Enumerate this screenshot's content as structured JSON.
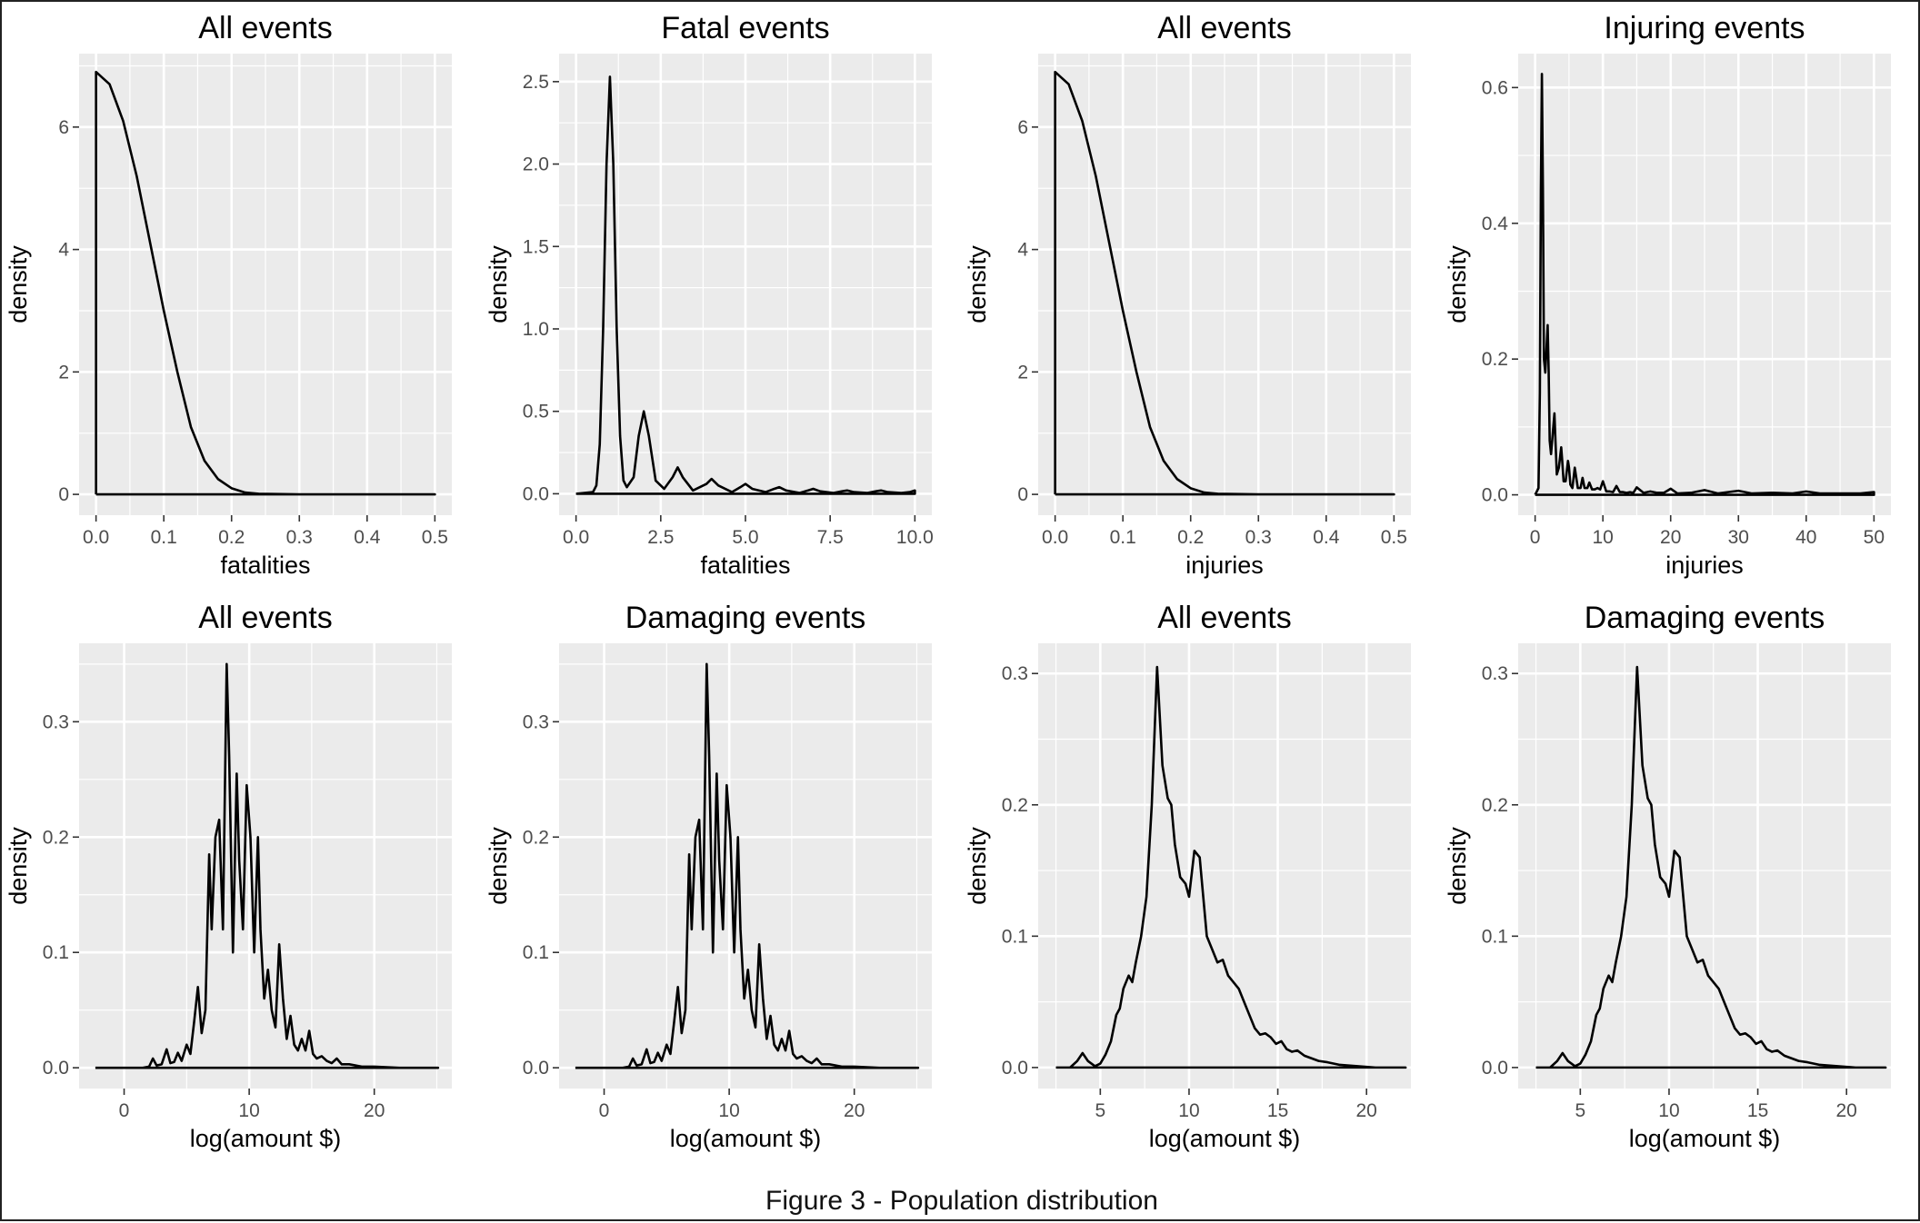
{
  "caption": "Figure 3 - Population distribution",
  "chart_data": [
    {
      "type": "line",
      "title": "All events",
      "xlabel": "fatalities",
      "ylabel": "density",
      "xlim": [
        -0.025,
        0.525
      ],
      "ylim": [
        -0.34,
        7.2
      ],
      "x_ticks": [
        0,
        0.1,
        0.2,
        0.3,
        0.4,
        0.5
      ],
      "x_tick_labels": [
        "0.0",
        "0.1",
        "0.2",
        "0.3",
        "0.4",
        "0.5"
      ],
      "y_ticks": [
        0,
        2,
        4,
        6
      ],
      "y_tick_labels": [
        "0",
        "2",
        "4",
        "6"
      ],
      "series": [
        {
          "x": [
            0,
            0,
            0.02,
            0.04,
            0.06,
            0.08,
            0.1,
            0.12,
            0.14,
            0.16,
            0.18,
            0.2,
            0.22,
            0.24,
            0.3,
            0.4,
            0.5,
            0
          ],
          "y": [
            0,
            6.9,
            6.7,
            6.1,
            5.2,
            4.1,
            3.0,
            2.0,
            1.1,
            0.55,
            0.25,
            0.1,
            0.03,
            0.01,
            0,
            0,
            0,
            0
          ]
        }
      ]
    },
    {
      "type": "line",
      "title": "Fatal events",
      "xlabel": "fatalities",
      "ylabel": "density",
      "xlim": [
        -0.5,
        10.5
      ],
      "ylim": [
        -0.13,
        2.67
      ],
      "x_ticks": [
        0,
        2.5,
        5,
        7.5,
        10
      ],
      "x_tick_labels": [
        "0.0",
        "2.5",
        "5.0",
        "7.5",
        "10.0"
      ],
      "y_ticks": [
        0,
        0.5,
        1,
        1.5,
        2,
        2.5
      ],
      "y_tick_labels": [
        "0.0",
        "0.5",
        "1.0",
        "1.5",
        "2.0",
        "2.5"
      ],
      "series": [
        {
          "x": [
            0,
            0.5,
            0.6,
            0.7,
            0.8,
            0.9,
            1.0,
            1.1,
            1.2,
            1.3,
            1.4,
            1.5,
            1.7,
            1.85,
            2.0,
            2.15,
            2.35,
            2.6,
            2.85,
            3.0,
            3.15,
            3.45,
            3.85,
            4.0,
            4.2,
            4.6,
            4.85,
            5.0,
            5.2,
            5.6,
            5.85,
            6.0,
            6.2,
            6.6,
            6.85,
            7.0,
            7.2,
            7.6,
            7.85,
            8.0,
            8.2,
            8.6,
            8.85,
            9.0,
            9.2,
            9.6,
            9.85,
            10.0,
            10.0,
            0
          ],
          "y": [
            0,
            0.01,
            0.05,
            0.3,
            1.0,
            2.0,
            2.53,
            2.0,
            1.0,
            0.35,
            0.08,
            0.04,
            0.1,
            0.35,
            0.5,
            0.35,
            0.08,
            0.03,
            0.1,
            0.16,
            0.1,
            0.02,
            0.06,
            0.09,
            0.05,
            0.01,
            0.04,
            0.06,
            0.03,
            0.01,
            0.03,
            0.04,
            0.02,
            0.005,
            0.02,
            0.03,
            0.015,
            0.005,
            0.015,
            0.02,
            0.01,
            0.005,
            0.015,
            0.02,
            0.01,
            0.005,
            0.01,
            0.02,
            0,
            0
          ]
        }
      ]
    },
    {
      "type": "line",
      "title": "All events",
      "xlabel": "injuries",
      "ylabel": "density",
      "xlim": [
        -0.025,
        0.525
      ],
      "ylim": [
        -0.34,
        7.2
      ],
      "x_ticks": [
        0,
        0.1,
        0.2,
        0.3,
        0.4,
        0.5
      ],
      "x_tick_labels": [
        "0.0",
        "0.1",
        "0.2",
        "0.3",
        "0.4",
        "0.5"
      ],
      "y_ticks": [
        0,
        2,
        4,
        6
      ],
      "y_tick_labels": [
        "0",
        "2",
        "4",
        "6"
      ],
      "series": [
        {
          "x": [
            0,
            0,
            0.02,
            0.04,
            0.06,
            0.08,
            0.1,
            0.12,
            0.14,
            0.16,
            0.18,
            0.2,
            0.22,
            0.24,
            0.3,
            0.4,
            0.5,
            0
          ],
          "y": [
            0,
            6.9,
            6.7,
            6.1,
            5.2,
            4.1,
            3.0,
            2.0,
            1.1,
            0.55,
            0.25,
            0.1,
            0.03,
            0.01,
            0,
            0,
            0,
            0
          ]
        }
      ]
    },
    {
      "type": "line",
      "title": "Injuring events",
      "xlabel": "injuries",
      "ylabel": "density",
      "xlim": [
        -2.5,
        52.5
      ],
      "ylim": [
        -0.03,
        0.65
      ],
      "x_ticks": [
        0,
        10,
        20,
        30,
        40,
        50
      ],
      "x_tick_labels": [
        "0",
        "10",
        "20",
        "30",
        "40",
        "50"
      ],
      "y_ticks": [
        0,
        0.2,
        0.4,
        0.6
      ],
      "y_tick_labels": [
        "0.0",
        "0.2",
        "0.4",
        "0.6"
      ],
      "series": [
        {
          "x": [
            0,
            0.5,
            0.7,
            0.85,
            1.0,
            1.15,
            1.3,
            1.5,
            1.7,
            1.85,
            2.0,
            2.15,
            2.35,
            2.6,
            2.85,
            3.0,
            3.2,
            3.5,
            3.85,
            4.0,
            4.2,
            4.5,
            4.85,
            5.0,
            5.2,
            5.5,
            5.85,
            6.0,
            6.3,
            6.7,
            7.0,
            7.3,
            7.7,
            8.0,
            8.4,
            8.8,
            9.2,
            9.6,
            10.0,
            10.5,
            11.0,
            11.5,
            12.0,
            12.5,
            13.0,
            13.5,
            14.0,
            14.5,
            15.0,
            16.0,
            17.0,
            18.0,
            19.0,
            20.0,
            21.0,
            23.0,
            25.0,
            27.0,
            30.0,
            32.0,
            35.0,
            38.0,
            40.0,
            42.0,
            45.0,
            48.0,
            50.0,
            50.0,
            0
          ],
          "y": [
            0,
            0.01,
            0.15,
            0.45,
            0.62,
            0.45,
            0.2,
            0.18,
            0.22,
            0.25,
            0.18,
            0.08,
            0.06,
            0.09,
            0.12,
            0.08,
            0.03,
            0.04,
            0.07,
            0.05,
            0.02,
            0.02,
            0.05,
            0.04,
            0.015,
            0.01,
            0.04,
            0.03,
            0.01,
            0.01,
            0.025,
            0.01,
            0.01,
            0.018,
            0.008,
            0.008,
            0.01,
            0.008,
            0.02,
            0.005,
            0.005,
            0.004,
            0.013,
            0.004,
            0.004,
            0.003,
            0.004,
            0.003,
            0.011,
            0.003,
            0.005,
            0.003,
            0.003,
            0.009,
            0.002,
            0.003,
            0.007,
            0.002,
            0.006,
            0.002,
            0.003,
            0.002,
            0.005,
            0.002,
            0.002,
            0.002,
            0.004,
            0,
            0
          ]
        }
      ]
    },
    {
      "type": "line",
      "title": "All events",
      "xlabel": "log(amount $)",
      "ylabel": "density",
      "xlim": [
        -3.6,
        26.2
      ],
      "ylim": [
        -0.018,
        0.368
      ],
      "x_ticks": [
        0,
        10,
        20
      ],
      "x_tick_labels": [
        "0",
        "10",
        "20"
      ],
      "y_ticks": [
        0,
        0.1,
        0.2,
        0.3
      ],
      "y_tick_labels": [
        "0.0",
        "0.1",
        "0.2",
        "0.3"
      ],
      "series": [
        {
          "x": [
            -2.3,
            1.5,
            2.0,
            2.3,
            2.6,
            3.0,
            3.4,
            3.7,
            4.0,
            4.3,
            4.6,
            5.0,
            5.3,
            5.6,
            5.9,
            6.2,
            6.5,
            6.8,
            7.0,
            7.3,
            7.6,
            7.9,
            8.2,
            8.4,
            8.7,
            9.0,
            9.2,
            9.5,
            9.8,
            10.1,
            10.4,
            10.7,
            10.9,
            11.2,
            11.5,
            11.8,
            12.1,
            12.4,
            12.7,
            13.0,
            13.3,
            13.6,
            13.9,
            14.2,
            14.5,
            14.8,
            15.1,
            15.4,
            15.8,
            16.2,
            16.6,
            17.0,
            17.4,
            18.0,
            19.0,
            20.0,
            22.0,
            25.1,
            25.1,
            -2.3
          ],
          "y": [
            0,
            0,
            0.001,
            0.008,
            0.002,
            0.003,
            0.016,
            0.004,
            0.005,
            0.013,
            0.006,
            0.02,
            0.012,
            0.04,
            0.07,
            0.03,
            0.05,
            0.185,
            0.12,
            0.2,
            0.215,
            0.12,
            0.35,
            0.27,
            0.1,
            0.255,
            0.18,
            0.12,
            0.245,
            0.2,
            0.1,
            0.2,
            0.12,
            0.06,
            0.085,
            0.05,
            0.035,
            0.107,
            0.06,
            0.025,
            0.045,
            0.02,
            0.015,
            0.025,
            0.015,
            0.032,
            0.012,
            0.008,
            0.01,
            0.006,
            0.004,
            0.008,
            0.003,
            0.003,
            0.001,
            0.001,
            0,
            0,
            0,
            0
          ]
        }
      ]
    },
    {
      "type": "line",
      "title": "Damaging events",
      "xlabel": "log(amount $)",
      "ylabel": "density",
      "xlim": [
        -3.6,
        26.2
      ],
      "ylim": [
        -0.018,
        0.368
      ],
      "x_ticks": [
        0,
        10,
        20
      ],
      "x_tick_labels": [
        "0",
        "10",
        "20"
      ],
      "y_ticks": [
        0,
        0.1,
        0.2,
        0.3
      ],
      "y_tick_labels": [
        "0.0",
        "0.1",
        "0.2",
        "0.3"
      ],
      "series": [
        {
          "x": [
            -2.3,
            1.5,
            2.0,
            2.3,
            2.6,
            3.0,
            3.4,
            3.7,
            4.0,
            4.3,
            4.6,
            5.0,
            5.3,
            5.6,
            5.9,
            6.2,
            6.5,
            6.8,
            7.0,
            7.3,
            7.6,
            7.9,
            8.2,
            8.4,
            8.7,
            9.0,
            9.2,
            9.5,
            9.8,
            10.1,
            10.4,
            10.7,
            10.9,
            11.2,
            11.5,
            11.8,
            12.1,
            12.4,
            12.7,
            13.0,
            13.3,
            13.6,
            13.9,
            14.2,
            14.5,
            14.8,
            15.1,
            15.4,
            15.8,
            16.2,
            16.6,
            17.0,
            17.4,
            18.0,
            19.0,
            20.0,
            22.0,
            25.1,
            25.1,
            -2.3
          ],
          "y": [
            0,
            0,
            0.001,
            0.008,
            0.002,
            0.003,
            0.016,
            0.004,
            0.005,
            0.013,
            0.006,
            0.02,
            0.012,
            0.04,
            0.07,
            0.03,
            0.05,
            0.185,
            0.12,
            0.2,
            0.215,
            0.12,
            0.35,
            0.27,
            0.1,
            0.255,
            0.18,
            0.12,
            0.245,
            0.2,
            0.1,
            0.2,
            0.12,
            0.06,
            0.085,
            0.05,
            0.035,
            0.107,
            0.06,
            0.025,
            0.045,
            0.02,
            0.015,
            0.025,
            0.015,
            0.032,
            0.012,
            0.008,
            0.01,
            0.006,
            0.004,
            0.008,
            0.003,
            0.003,
            0.001,
            0.001,
            0,
            0,
            0,
            0
          ]
        }
      ]
    },
    {
      "type": "line",
      "title": "All events",
      "xlabel": "log(amount $)",
      "ylabel": "density",
      "xlim": [
        1.5,
        22.5
      ],
      "ylim": [
        -0.016,
        0.323
      ],
      "x_ticks": [
        5,
        10,
        15,
        20
      ],
      "x_tick_labels": [
        "5",
        "10",
        "15",
        "20"
      ],
      "y_ticks": [
        0,
        0.1,
        0.2,
        0.3
      ],
      "y_tick_labels": [
        "0.0",
        "0.1",
        "0.2",
        "0.3"
      ],
      "series": [
        {
          "x": [
            2.5,
            3.3,
            3.7,
            4.0,
            4.3,
            4.7,
            5.0,
            5.3,
            5.6,
            5.9,
            6.1,
            6.3,
            6.6,
            6.8,
            7.0,
            7.3,
            7.6,
            7.9,
            8.2,
            8.5,
            8.8,
            9.0,
            9.2,
            9.5,
            9.8,
            10.0,
            10.3,
            10.6,
            10.8,
            11.0,
            11.3,
            11.6,
            11.9,
            12.2,
            12.5,
            12.8,
            13.1,
            13.4,
            13.7,
            14.0,
            14.3,
            14.6,
            14.9,
            15.2,
            15.5,
            15.8,
            16.1,
            16.5,
            16.9,
            17.3,
            17.8,
            18.5,
            19.5,
            20.5,
            22.2,
            22.2,
            2.5
          ],
          "y": [
            0,
            0,
            0.005,
            0.011,
            0.005,
            0.001,
            0.003,
            0.01,
            0.02,
            0.04,
            0.045,
            0.06,
            0.07,
            0.065,
            0.08,
            0.1,
            0.13,
            0.2,
            0.305,
            0.23,
            0.205,
            0.2,
            0.17,
            0.145,
            0.14,
            0.13,
            0.165,
            0.16,
            0.13,
            0.1,
            0.09,
            0.08,
            0.082,
            0.07,
            0.065,
            0.06,
            0.05,
            0.04,
            0.03,
            0.025,
            0.026,
            0.023,
            0.018,
            0.02,
            0.014,
            0.012,
            0.013,
            0.009,
            0.007,
            0.005,
            0.004,
            0.002,
            0.001,
            0,
            0,
            0,
            0
          ]
        }
      ]
    },
    {
      "type": "line",
      "title": "Damaging events",
      "xlabel": "log(amount $)",
      "ylabel": "density",
      "xlim": [
        1.5,
        22.5
      ],
      "ylim": [
        -0.016,
        0.323
      ],
      "x_ticks": [
        5,
        10,
        15,
        20
      ],
      "x_tick_labels": [
        "5",
        "10",
        "15",
        "20"
      ],
      "y_ticks": [
        0,
        0.1,
        0.2,
        0.3
      ],
      "y_tick_labels": [
        "0.0",
        "0.1",
        "0.2",
        "0.3"
      ],
      "series": [
        {
          "x": [
            2.5,
            3.3,
            3.7,
            4.0,
            4.3,
            4.7,
            5.0,
            5.3,
            5.6,
            5.9,
            6.1,
            6.3,
            6.6,
            6.8,
            7.0,
            7.3,
            7.6,
            7.9,
            8.2,
            8.5,
            8.8,
            9.0,
            9.2,
            9.5,
            9.8,
            10.0,
            10.3,
            10.6,
            10.8,
            11.0,
            11.3,
            11.6,
            11.9,
            12.2,
            12.5,
            12.8,
            13.1,
            13.4,
            13.7,
            14.0,
            14.3,
            14.6,
            14.9,
            15.2,
            15.5,
            15.8,
            16.1,
            16.5,
            16.9,
            17.3,
            17.8,
            18.5,
            19.5,
            20.5,
            22.2,
            22.2,
            2.5
          ],
          "y": [
            0,
            0,
            0.005,
            0.011,
            0.005,
            0.001,
            0.003,
            0.01,
            0.02,
            0.04,
            0.045,
            0.06,
            0.07,
            0.065,
            0.08,
            0.1,
            0.13,
            0.2,
            0.305,
            0.23,
            0.205,
            0.2,
            0.17,
            0.145,
            0.14,
            0.13,
            0.165,
            0.16,
            0.13,
            0.1,
            0.09,
            0.08,
            0.082,
            0.07,
            0.065,
            0.06,
            0.05,
            0.04,
            0.03,
            0.025,
            0.026,
            0.023,
            0.018,
            0.02,
            0.014,
            0.012,
            0.013,
            0.009,
            0.007,
            0.005,
            0.004,
            0.002,
            0.001,
            0,
            0,
            0,
            0
          ]
        }
      ]
    }
  ]
}
